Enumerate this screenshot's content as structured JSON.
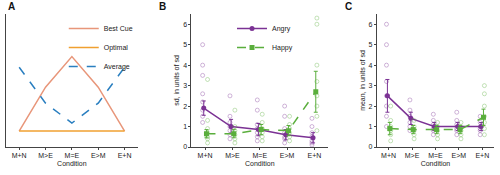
{
  "chart_data": [
    {
      "type": "line",
      "title": "A",
      "x_label": "Condition",
      "categories": [
        "M+N",
        "M>E",
        "M=E",
        "E>M",
        "E+N"
      ],
      "ylim": [
        0,
        1
      ],
      "tick_labels": "x",
      "legend": "top right",
      "series": [
        {
          "name": "Best Cue",
          "color": "#e8967a",
          "line_style": "solid",
          "marker": "none",
          "values": [
            0.12,
            0.45,
            0.68,
            0.45,
            0.12
          ]
        },
        {
          "name": "Optimal",
          "color": "#f0a030",
          "line_style": "solid",
          "marker": "none",
          "values": [
            0.12,
            0.12,
            0.12,
            0.12,
            0.12
          ]
        },
        {
          "name": "Average",
          "color": "#2a7fc0",
          "line_style": "dash",
          "marker": "none",
          "values": [
            0.6,
            0.33,
            0.18,
            0.33,
            0.6
          ]
        }
      ]
    },
    {
      "type": "line",
      "title": "B",
      "x_label": "Condition",
      "y_label": "sd, in units of sd",
      "categories": [
        "M+N",
        "M>E",
        "M=E",
        "E>M",
        "E+N"
      ],
      "ylim": [
        0,
        6.5
      ],
      "yticks": [
        0,
        1,
        2,
        3,
        4,
        5,
        6
      ],
      "legend": "top right",
      "series": [
        {
          "name": "Angry",
          "color": "#7b3294",
          "line_style": "solid",
          "marker": "circle",
          "values": [
            1.9,
            1.0,
            0.85,
            0.6,
            0.45
          ],
          "errors": [
            0.35,
            0.35,
            0.3,
            0.25,
            0.25
          ],
          "points": [
            [
              1.2,
              1.5,
              1.8,
              2.2,
              2.6,
              3.5,
              4.0,
              5.0
            ],
            [
              0.4,
              0.6,
              0.8,
              1.0,
              1.2,
              1.5,
              2.5
            ],
            [
              0.3,
              0.5,
              0.7,
              0.9,
              1.1,
              1.8,
              2.3
            ],
            [
              0.2,
              0.4,
              0.5,
              0.7,
              0.9,
              1.5,
              2.0
            ],
            [
              0.1,
              0.2,
              0.3,
              0.5,
              0.7,
              1.0,
              1.4
            ]
          ]
        },
        {
          "name": "Happy",
          "color": "#5aae3c",
          "line_style": "dash",
          "marker": "square",
          "values": [
            0.65,
            0.65,
            0.85,
            0.8,
            2.7
          ],
          "errors": [
            0.2,
            0.2,
            0.25,
            0.25,
            1.0
          ],
          "points": [
            [
              0.2,
              0.4,
              0.5,
              0.7,
              0.9,
              1.3,
              3.3
            ],
            [
              0.2,
              0.4,
              0.6,
              0.8,
              1.0,
              1.8
            ],
            [
              0.3,
              0.5,
              0.7,
              0.9,
              1.2,
              1.6
            ],
            [
              0.3,
              0.5,
              0.7,
              0.9,
              1.1,
              1.5
            ],
            [
              0.8,
              1.5,
              2.0,
              2.5,
              3.2,
              4.0,
              6.0,
              6.3
            ]
          ]
        }
      ]
    },
    {
      "type": "line",
      "title": "C",
      "x_label": "Condition",
      "y_label": "mean, in units of sd",
      "categories": [
        "M+N",
        "M>E",
        "M=E",
        "E>M",
        "E+N"
      ],
      "ylim": [
        0,
        6.5
      ],
      "yticks": [
        0,
        1,
        2,
        3,
        4,
        5,
        6
      ],
      "legend": false,
      "series": [
        {
          "name": "Angry",
          "color": "#7b3294",
          "line_style": "solid",
          "marker": "circle",
          "values": [
            2.5,
            1.4,
            1.0,
            1.0,
            1.0
          ],
          "errors": [
            0.8,
            0.3,
            0.2,
            0.2,
            0.2
          ],
          "points": [
            [
              1.0,
              1.5,
              2.0,
              2.5,
              3.2,
              4.0,
              5.0,
              6.0
            ],
            [
              0.8,
              1.0,
              1.2,
              1.5,
              1.8,
              2.3
            ],
            [
              0.6,
              0.8,
              0.9,
              1.1,
              1.3,
              1.6
            ],
            [
              0.6,
              0.8,
              0.9,
              1.1,
              1.3,
              1.7
            ],
            [
              0.6,
              0.8,
              0.9,
              1.0,
              1.2,
              1.5
            ]
          ]
        },
        {
          "name": "Happy",
          "color": "#5aae3c",
          "line_style": "dash",
          "marker": "square",
          "values": [
            0.9,
            0.85,
            0.85,
            0.85,
            1.45
          ],
          "errors": [
            0.3,
            0.2,
            0.2,
            0.2,
            0.4
          ],
          "points": [
            [
              0.3,
              0.6,
              0.8,
              1.0,
              1.3,
              2.0
            ],
            [
              0.4,
              0.6,
              0.8,
              1.0,
              1.3
            ],
            [
              0.4,
              0.6,
              0.8,
              1.0,
              1.2
            ],
            [
              0.4,
              0.6,
              0.8,
              1.0,
              1.2
            ],
            [
              0.6,
              0.9,
              1.2,
              1.5,
              2.0,
              2.6,
              3.0
            ]
          ]
        }
      ]
    }
  ]
}
